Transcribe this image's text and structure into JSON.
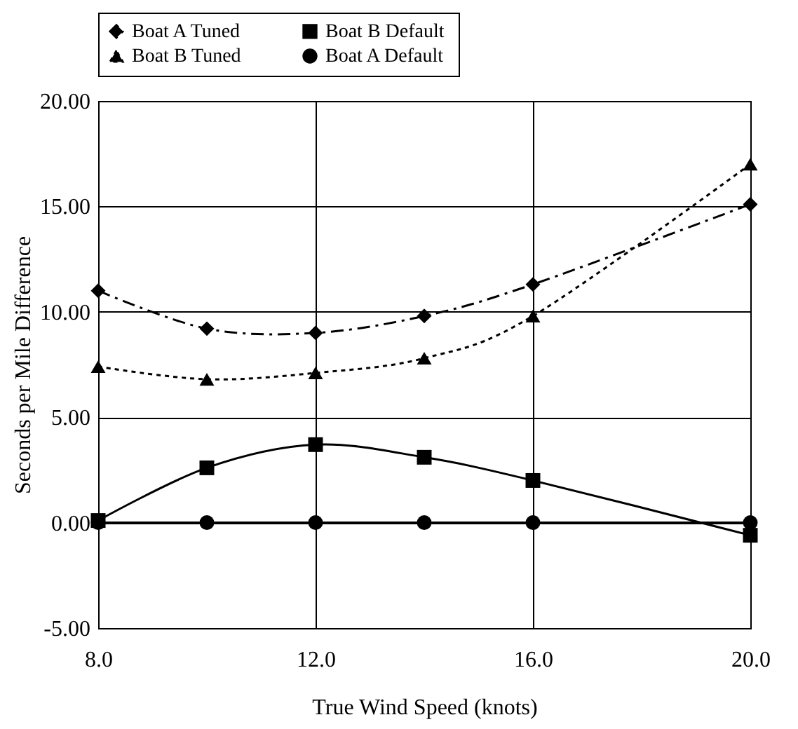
{
  "chart_data": {
    "type": "line",
    "xlabel": "True Wind Speed (knots)",
    "ylabel": "Seconds per Mile Difference",
    "x": [
      8,
      10,
      12,
      14,
      16,
      20
    ],
    "xlim": [
      8,
      20
    ],
    "xticks": [
      {
        "value": 8,
        "label": "8.0"
      },
      {
        "value": 12,
        "label": "12.0"
      },
      {
        "value": 16,
        "label": "16.0"
      },
      {
        "value": 20,
        "label": "20.0"
      }
    ],
    "ylim": [
      -5,
      20
    ],
    "yticks": [
      {
        "value": -5,
        "label": "-5.00"
      },
      {
        "value": 0,
        "label": "0.00"
      },
      {
        "value": 5,
        "label": "5.00"
      },
      {
        "value": 10,
        "label": "10.00"
      },
      {
        "value": 15,
        "label": "15.00"
      },
      {
        "value": 20,
        "label": "20.00"
      }
    ],
    "grid": true,
    "legend": "top",
    "series": [
      {
        "name": "Boat A Tuned",
        "color": "#000000",
        "marker": "diamond",
        "line_style": "dashed",
        "values": [
          11.0,
          9.2,
          9.0,
          9.8,
          11.3,
          15.1
        ]
      },
      {
        "name": "Boat  B Default",
        "color": "#000000",
        "marker": "square",
        "line_style": "solid",
        "values": [
          0.1,
          2.6,
          3.7,
          3.1,
          2.0,
          -0.6
        ]
      },
      {
        "name": "Boat B Tuned",
        "color": "#000000",
        "marker": "triangle",
        "line_style": "dotted",
        "values": [
          7.4,
          6.8,
          7.1,
          7.8,
          9.8,
          17.0
        ]
      },
      {
        "name": "Boat A Default",
        "color": "#000000",
        "marker": "circle",
        "line_style": "solid",
        "values": [
          0,
          0,
          0,
          0,
          0,
          0
        ]
      }
    ]
  }
}
